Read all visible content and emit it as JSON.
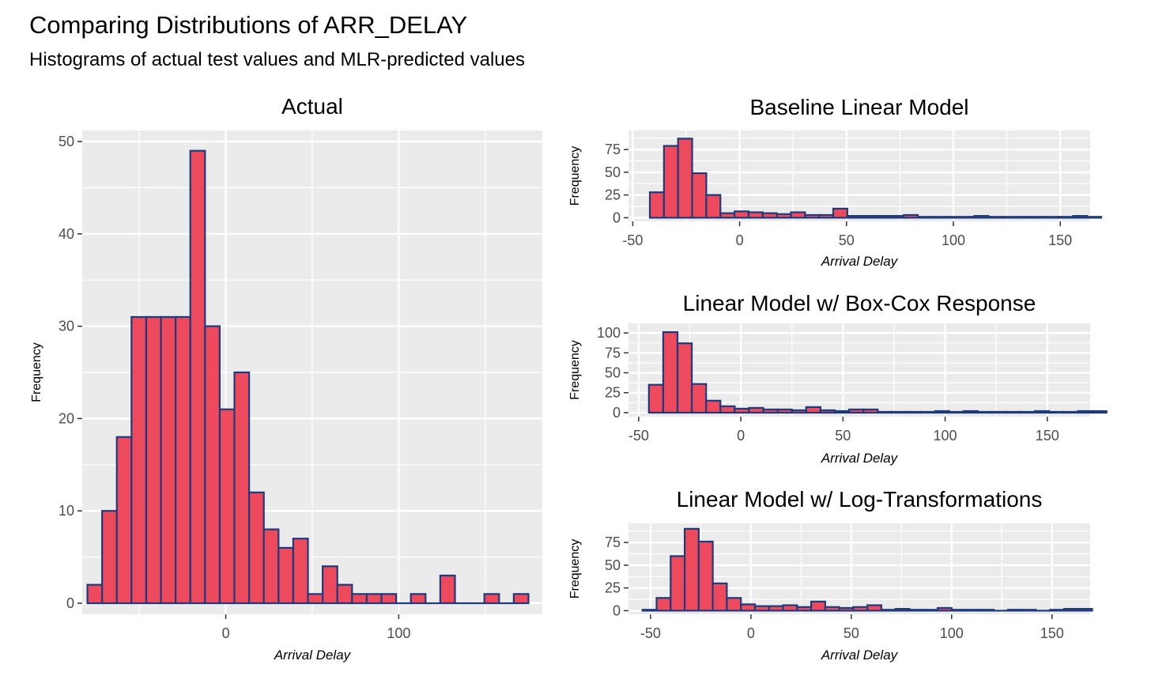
{
  "title": "Comparing Distributions of ARR_DELAY",
  "subtitle": "Histograms of actual test values and MLR-predicted values",
  "colors": {
    "fill": "#ee4a5e",
    "stroke": "#1f3a7a",
    "panel": "#ebebeb",
    "grid": "#ffffff"
  },
  "chart_data": [
    {
      "type": "bar",
      "title": "Actual",
      "xlabel": "Arrival Delay",
      "ylabel": "Frequency",
      "xlim": [
        -83,
        183
      ],
      "ylim": [
        -1.2,
        51.2
      ],
      "xticks": [
        0,
        100
      ],
      "yticks": [
        0,
        10,
        20,
        30,
        40,
        50
      ],
      "bin_width": 8.5,
      "bin_start": -80,
      "values": [
        2,
        10,
        18,
        31,
        31,
        31,
        31,
        49,
        30,
        21,
        25,
        12,
        8,
        6,
        7,
        1,
        4,
        2,
        1,
        1,
        1,
        0,
        1,
        0,
        3,
        0,
        0,
        1,
        0,
        1
      ]
    },
    {
      "type": "bar",
      "title": "Baseline Linear Model",
      "xlabel": "Arrival Delay",
      "ylabel": "Frequency",
      "xlim": [
        -52,
        164
      ],
      "ylim": [
        -4,
        96
      ],
      "xticks": [
        -50,
        0,
        50,
        100,
        150
      ],
      "yticks": [
        0,
        25,
        50,
        75
      ],
      "bin_width": 6.6,
      "bin_start": -42,
      "values": [
        28,
        79,
        87,
        49,
        25,
        5,
        7,
        6,
        5,
        4,
        6,
        3,
        3,
        10,
        2,
        2,
        2,
        2,
        3,
        1,
        1,
        1,
        1,
        2,
        1,
        1,
        1,
        1,
        1,
        1,
        2,
        1
      ]
    },
    {
      "type": "bar",
      "title": "Linear Model w/ Box-Cox Response",
      "xlabel": "Arrival Delay",
      "ylabel": "Frequency",
      "xlim": [
        -55,
        171
      ],
      "ylim": [
        -5,
        112
      ],
      "xticks": [
        -50,
        0,
        50,
        100,
        150
      ],
      "yticks": [
        0,
        25,
        50,
        75,
        100
      ],
      "bin_width": 7.0,
      "bin_start": -45,
      "values": [
        35,
        101,
        87,
        36,
        15,
        8,
        5,
        6,
        4,
        4,
        3,
        7,
        3,
        2,
        4,
        4,
        1,
        1,
        1,
        1,
        2,
        1,
        2,
        1,
        1,
        1,
        1,
        2,
        1,
        1,
        2,
        2
      ]
    },
    {
      "type": "bar",
      "title": "Linear Model w/ Log-Transformations",
      "xlabel": "Arrival Delay",
      "ylabel": "Frequency",
      "xlim": [
        -61,
        169
      ],
      "ylim": [
        -4,
        96
      ],
      "xticks": [
        -50,
        0,
        50,
        100,
        150
      ],
      "yticks": [
        0,
        25,
        50,
        75
      ],
      "bin_width": 7.0,
      "bin_start": -54,
      "values": [
        1,
        14,
        60,
        90,
        76,
        30,
        14,
        7,
        5,
        5,
        6,
        4,
        10,
        4,
        3,
        4,
        6,
        1,
        2,
        1,
        1,
        3,
        1,
        1,
        1,
        0,
        1,
        1,
        0,
        1,
        2,
        2
      ]
    }
  ]
}
